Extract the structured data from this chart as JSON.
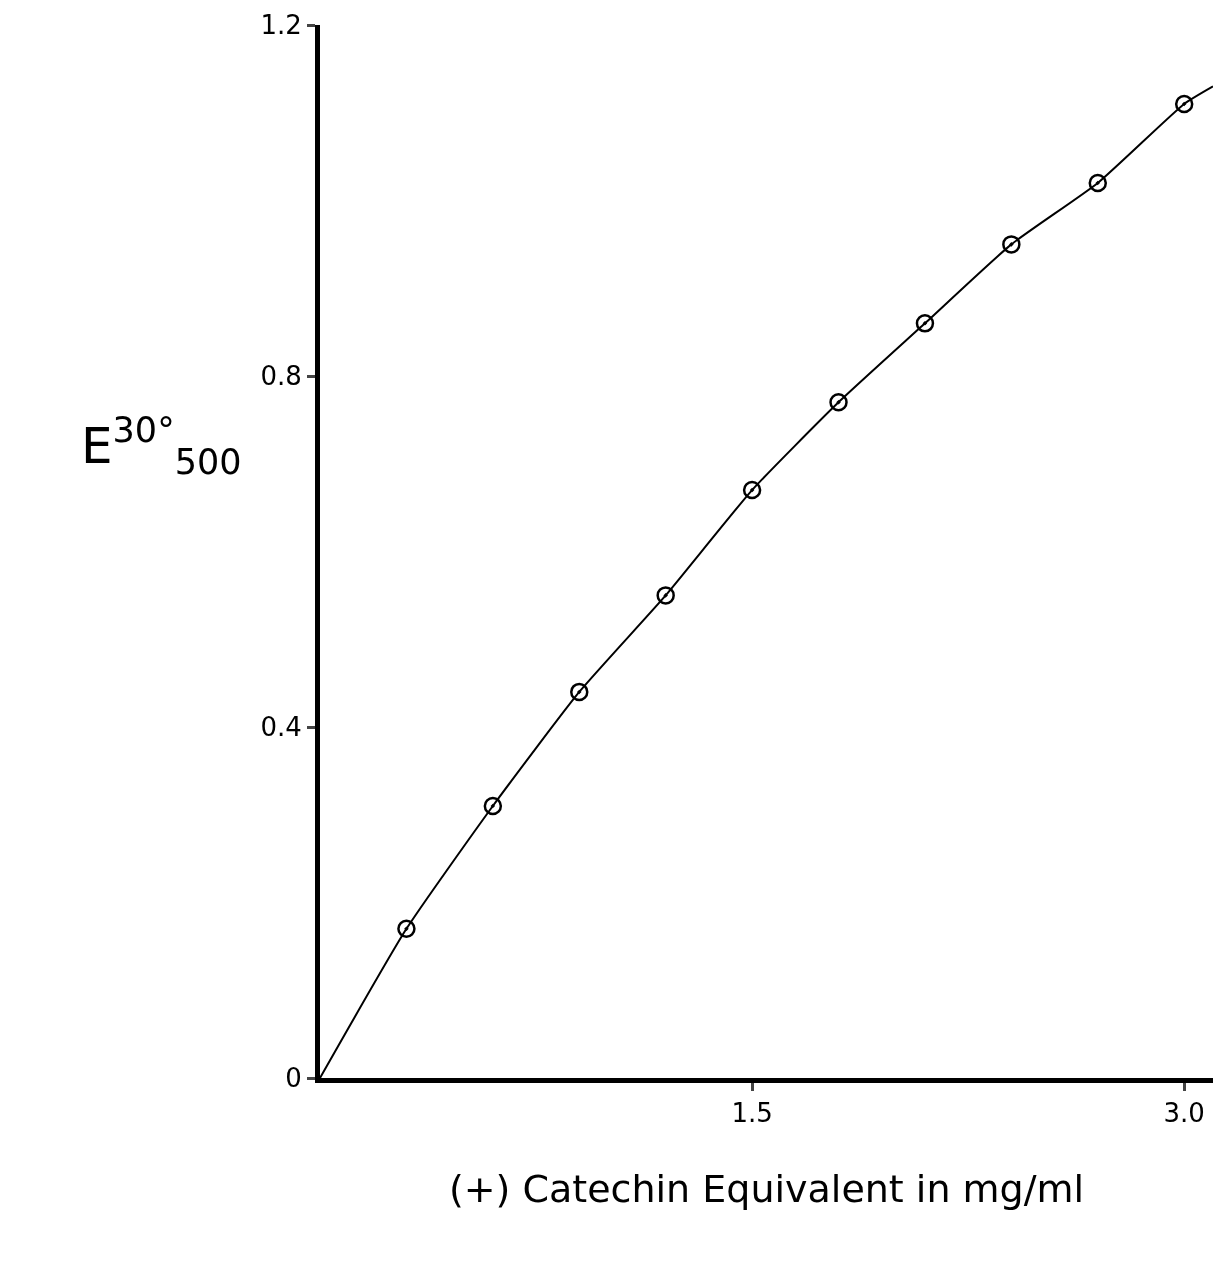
{
  "chart_data": {
    "type": "scatter",
    "xlabel": "(+) Catechin Equivalent in mg/ml",
    "ylabel": "E$^{30°}$$_{500}$",
    "x": [
      0.3,
      0.6,
      0.9,
      1.2,
      1.5,
      1.8,
      2.1,
      2.4,
      2.7,
      3.0
    ],
    "series": [
      {
        "color": "#000000",
        "marker": "circle",
        "values": [
          0.17,
          0.31,
          0.44,
          0.55,
          0.67,
          0.77,
          0.86,
          0.95,
          1.02,
          1.11
        ]
      },
      {
        "type": "line",
        "color": "#000000",
        "line_style": "solid",
        "marker": "none",
        "x": [
          0,
          0.3,
          0.6,
          0.9,
          1.2,
          1.5,
          1.8,
          2.1,
          2.4,
          2.7,
          3.0,
          3.1
        ],
        "values": [
          0,
          0.17,
          0.31,
          0.44,
          0.55,
          0.67,
          0.77,
          0.86,
          0.95,
          1.02,
          1.11,
          1.13
        ]
      }
    ],
    "xlim": [
      0,
      3.1
    ],
    "ylim": [
      0,
      1.2
    ],
    "xticks": [
      1.5,
      {
        "value": 3.0,
        "label": "3.0"
      }
    ],
    "yticks": [
      0,
      0.4,
      0.8,
      1.2
    ],
    "legend": false
  }
}
